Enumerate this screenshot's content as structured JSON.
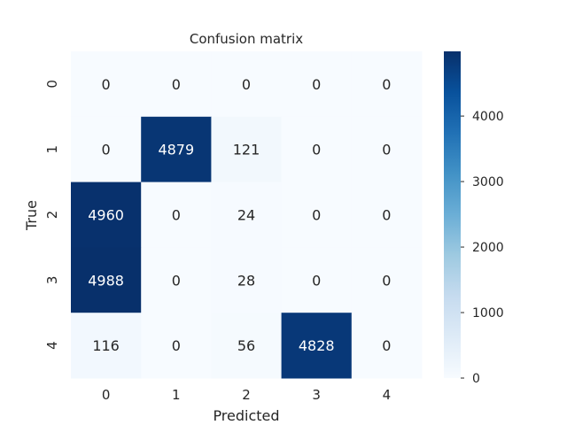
{
  "chart_data": {
    "type": "heatmap",
    "title": "Confusion matrix",
    "xlabel": "Predicted",
    "ylabel": "True",
    "x_categories": [
      "0",
      "1",
      "2",
      "3",
      "4"
    ],
    "y_categories": [
      "0",
      "1",
      "2",
      "3",
      "4"
    ],
    "values": [
      [
        0,
        0,
        0,
        0,
        0
      ],
      [
        0,
        4879,
        121,
        0,
        0
      ],
      [
        4960,
        0,
        24,
        0,
        0
      ],
      [
        4988,
        0,
        28,
        0,
        0
      ],
      [
        116,
        0,
        56,
        4828,
        0
      ]
    ],
    "colormap": "Blues",
    "color_range": [
      0,
      4988
    ],
    "colorbar_ticks": [
      0,
      1000,
      2000,
      3000,
      4000
    ],
    "colorbar_tick_labels": [
      "0",
      "1000",
      "2000",
      "3000",
      "4000"
    ],
    "grid": false
  }
}
